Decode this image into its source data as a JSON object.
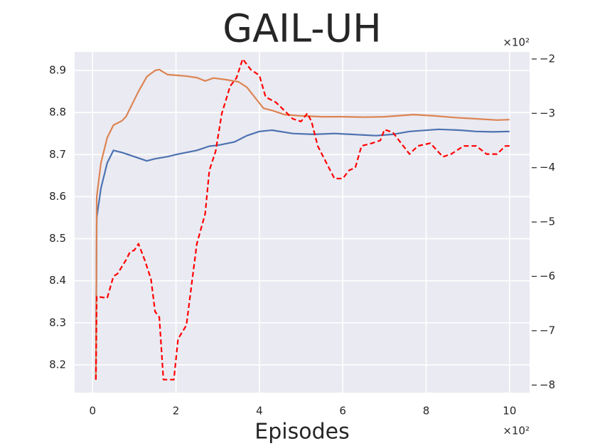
{
  "chart_data": {
    "type": "line",
    "title": "GAIL-UH",
    "x_label": "Episodes",
    "x_offset_label": "×10²",
    "y2_offset_label": "×10²",
    "background": "#eaeaf2",
    "grid": true,
    "xlim": [
      -0.43,
      10.48
    ],
    "xticks": [
      0,
      2,
      4,
      6,
      8,
      10
    ],
    "ylim": [
      8.134,
      8.944
    ],
    "yticks": [
      8.2,
      8.3,
      8.4,
      8.5,
      8.6,
      8.7,
      8.8,
      8.9
    ],
    "y2lim": [
      -8.14,
      -1.87
    ],
    "y2ticks": [
      {
        "value": -2,
        "label": "−2"
      },
      {
        "value": -3,
        "label": "−3"
      },
      {
        "value": -4,
        "label": "−4"
      },
      {
        "value": -5,
        "label": "−5"
      },
      {
        "value": -6,
        "label": "−6"
      },
      {
        "value": -7,
        "label": "−7"
      },
      {
        "value": -8,
        "label": "−8"
      }
    ],
    "series": [
      {
        "color": "#4c72b0",
        "style": "solid",
        "x": [
          0.08,
          0.1,
          0.2,
          0.35,
          0.5,
          0.7,
          1.0,
          1.3,
          1.5,
          1.8,
          2.0,
          2.5,
          2.8,
          3.0,
          3.4,
          3.7,
          4.0,
          4.3,
          4.8,
          5.3,
          5.8,
          6.2,
          6.8,
          7.2,
          7.6,
          8.3,
          8.8,
          9.2,
          9.6,
          10
        ],
        "values": [
          8.165,
          8.55,
          8.62,
          8.68,
          8.71,
          8.705,
          8.695,
          8.685,
          8.69,
          8.695,
          8.7,
          8.71,
          8.72,
          8.722,
          8.73,
          8.745,
          8.755,
          8.758,
          8.75,
          8.748,
          8.75,
          8.748,
          8.745,
          8.748,
          8.755,
          8.76,
          8.758,
          8.755,
          8.754,
          8.755
        ]
      },
      {
        "color": "#dd8452",
        "style": "solid",
        "x": [
          0.08,
          0.1,
          0.2,
          0.35,
          0.5,
          0.7,
          0.8,
          0.95,
          1.1,
          1.3,
          1.5,
          1.6,
          1.8,
          2.2,
          2.5,
          2.7,
          2.9,
          3.2,
          3.5,
          3.7,
          3.9,
          4.1,
          4.3,
          4.6,
          5.0,
          5.5,
          6.0,
          6.5,
          7.0,
          7.7,
          8.2,
          8.7,
          9.2,
          9.7,
          10
        ],
        "values": [
          8.165,
          8.6,
          8.68,
          8.74,
          8.77,
          8.78,
          8.79,
          8.82,
          8.85,
          8.885,
          8.9,
          8.902,
          8.89,
          8.887,
          8.883,
          8.875,
          8.882,
          8.878,
          8.873,
          8.86,
          8.835,
          8.81,
          8.805,
          8.795,
          8.792,
          8.79,
          8.79,
          8.789,
          8.79,
          8.795,
          8.792,
          8.788,
          8.785,
          8.782,
          8.783
        ]
      },
      {
        "color": "#ff0000",
        "style": "dashed",
        "axis": "y2",
        "x": [
          0.08,
          0.1,
          0.35,
          0.5,
          0.6,
          0.8,
          0.9,
          1.0,
          1.1,
          1.25,
          1.4,
          1.5,
          1.6,
          1.7,
          1.95,
          2.05,
          2.25,
          2.5,
          2.7,
          2.8,
          2.95,
          3.1,
          3.3,
          3.45,
          3.6,
          3.8,
          4.0,
          4.15,
          4.4,
          4.6,
          4.8,
          5.0,
          5.15,
          5.25,
          5.4,
          5.6,
          5.8,
          6.0,
          6.15,
          6.3,
          6.45,
          6.7,
          6.9,
          7.0,
          7.2,
          7.4,
          7.6,
          7.8,
          8.1,
          8.4,
          8.6,
          8.9,
          9.2,
          9.45,
          9.7,
          9.9,
          10
        ],
        "values": [
          -7.9,
          -6.37,
          -6.4,
          -6.0,
          -5.95,
          -5.7,
          -5.55,
          -5.52,
          -5.4,
          -5.7,
          -6.05,
          -6.65,
          -6.75,
          -7.9,
          -7.9,
          -7.15,
          -6.9,
          -5.4,
          -4.85,
          -4.05,
          -3.7,
          -3.0,
          -2.5,
          -2.35,
          -2.0,
          -2.2,
          -2.3,
          -2.7,
          -2.8,
          -2.95,
          -3.1,
          -3.15,
          -3.0,
          -3.15,
          -3.6,
          -3.9,
          -4.2,
          -4.2,
          -4.05,
          -4.0,
          -3.6,
          -3.55,
          -3.5,
          -3.3,
          -3.35,
          -3.55,
          -3.75,
          -3.6,
          -3.55,
          -3.8,
          -3.75,
          -3.6,
          -3.6,
          -3.75,
          -3.75,
          -3.6,
          -3.6
        ]
      }
    ]
  }
}
